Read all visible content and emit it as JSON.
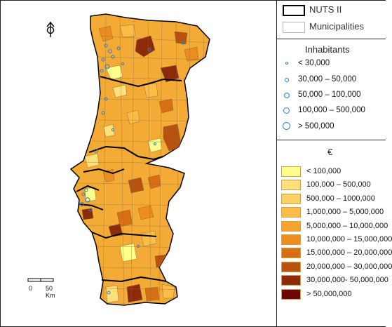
{
  "legend": {
    "nuts_label": "NUTS II",
    "municipalities_label": "Municipalities",
    "inhabitants_title": "Inhabitants",
    "inhabitants": [
      "< 30,000",
      "30,000 – 50,000",
      "50,000 – 100,000",
      "100,000 – 500,000",
      "> 500,000"
    ],
    "currency_title": "€",
    "classes": [
      {
        "label": "< 100,000",
        "color": "#ffff8c"
      },
      {
        "label": "100,000 – 500,000",
        "color": "#fde07a"
      },
      {
        "label": "500,000 – 1000,000",
        "color": "#fdd062"
      },
      {
        "label": "1,000,000 – 5,000,000",
        "color": "#fcbd46"
      },
      {
        "label": "5,000,000 – 10,000,000",
        "color": "#f7a42f"
      },
      {
        "label": "10,000,000 – 15,000,000",
        "color": "#ee8c1d"
      },
      {
        "label": "15,000,000 – 20,000,000",
        "color": "#d96f12"
      },
      {
        "label": "20,000,000 – 30,000,000",
        "color": "#b8520e"
      },
      {
        "label": "30,000,000- 50,000,000",
        "color": "#8c2a09"
      },
      {
        "label": "> 50,000,000",
        "color": "#6a0606"
      }
    ]
  },
  "map": {
    "north_arrow": "north-arrow-icon",
    "scale_zero": "0",
    "scale_distance": "50 Km",
    "land_color": "#f4ab35",
    "border_color": "#000000",
    "point_color": "#2f7fc7"
  }
}
